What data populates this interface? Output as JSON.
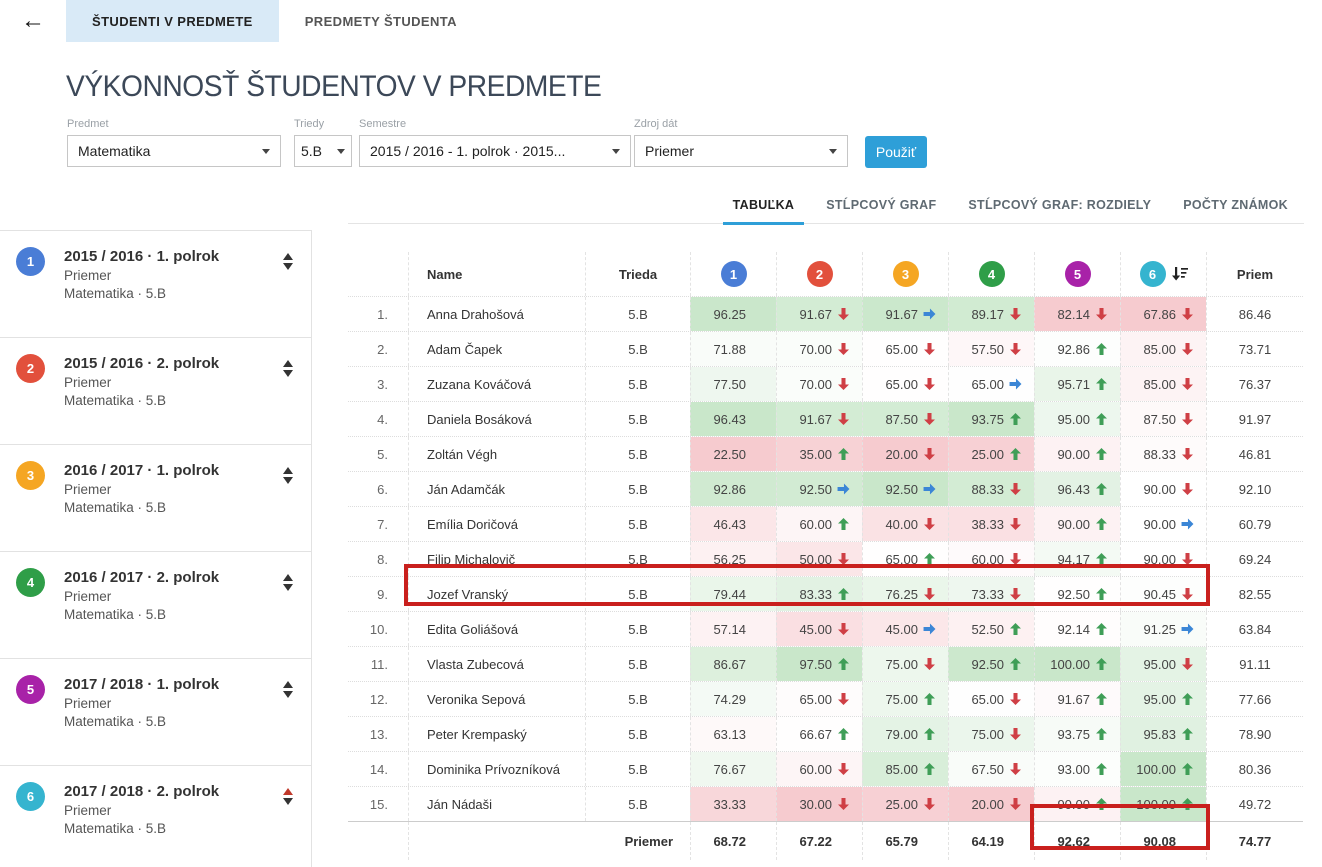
{
  "topbar": {
    "back_icon": "←",
    "tabs": [
      {
        "label": "ŠTUDENTI V PREDMETE",
        "active": true
      },
      {
        "label": "PREDMETY ŠTUDENTA",
        "active": false
      }
    ]
  },
  "page_title": "VÝKONNOSŤ ŠTUDENTOV V PREDMETE",
  "filters": {
    "predmet": {
      "label": "Predmet",
      "value": "Matematika"
    },
    "triedy": {
      "label": "Triedy",
      "value": "5.B"
    },
    "semestre": {
      "label": "Semestre",
      "value": "2015 / 2016 - 1. polrok · 2015..."
    },
    "zdroj": {
      "label": "Zdroj dát",
      "value": "Priemer"
    },
    "apply_label": "Použiť"
  },
  "view_tabs": [
    {
      "label": "TABUĽKA",
      "active": true
    },
    {
      "label": "STĹPCOVÝ GRAF",
      "active": false
    },
    {
      "label": "STĹPCOVÝ GRAF: ROZDIELY",
      "active": false
    },
    {
      "label": "POČTY ZNÁMOK",
      "active": false
    }
  ],
  "accent_color": "#2e9fd8",
  "annotation_color": "#c9201d",
  "series_colors": [
    "#4a7dd6",
    "#e2503c",
    "#f5a623",
    "#2f9e48",
    "#a822a8",
    "#35b4cf"
  ],
  "arrow_colors": {
    "up": "#3f9e57",
    "down": "#cf3f45",
    "same": "#3b86d6"
  },
  "cell_shade_colors": {
    "positive": "#4caf50",
    "negative": "#dc3545"
  },
  "sidebar": {
    "items": [
      {
        "num": "1",
        "title": "2015 / 2016 · 1. polrok",
        "line1": "Priemer",
        "line2": "Matematika · 5.B",
        "sort_up_red": false
      },
      {
        "num": "2",
        "title": "2015 / 2016 · 2. polrok",
        "line1": "Priemer",
        "line2": "Matematika · 5.B",
        "sort_up_red": false
      },
      {
        "num": "3",
        "title": "2016 / 2017 · 1. polrok",
        "line1": "Priemer",
        "line2": "Matematika · 5.B",
        "sort_up_red": false
      },
      {
        "num": "4",
        "title": "2016 / 2017 · 2. polrok",
        "line1": "Priemer",
        "line2": "Matematika · 5.B",
        "sort_up_red": false
      },
      {
        "num": "5",
        "title": "2017 / 2018 · 1. polrok",
        "line1": "Priemer",
        "line2": "Matematika · 5.B",
        "sort_up_red": false
      },
      {
        "num": "6",
        "title": "2017 / 2018 · 2. polrok",
        "line1": "Priemer",
        "line2": "Matematika · 5.B",
        "sort_up_red": true
      }
    ]
  },
  "table": {
    "headers": {
      "name": "Name",
      "trieda": "Trieda",
      "priem": "Priem"
    },
    "column_nums": [
      "1",
      "2",
      "3",
      "4",
      "5",
      "6"
    ],
    "sorted_column_index": 5,
    "rows": [
      {
        "num": "1.",
        "name": "Anna Drahošová",
        "trieda": "5.B",
        "values": [
          "96.25",
          "91.67",
          "91.67",
          "89.17",
          "82.14",
          "67.86"
        ],
        "arrows": [
          null,
          "down",
          "same",
          "down",
          "down",
          "down"
        ],
        "priem": "86.46"
      },
      {
        "num": "2.",
        "name": "Adam Čapek",
        "trieda": "5.B",
        "values": [
          "71.88",
          "70.00",
          "65.00",
          "57.50",
          "92.86",
          "85.00"
        ],
        "arrows": [
          null,
          "down",
          "down",
          "down",
          "up",
          "down"
        ],
        "priem": "73.71"
      },
      {
        "num": "3.",
        "name": "Zuzana Kováčová",
        "trieda": "5.B",
        "values": [
          "77.50",
          "70.00",
          "65.00",
          "65.00",
          "95.71",
          "85.00"
        ],
        "arrows": [
          null,
          "down",
          "down",
          "same",
          "up",
          "down"
        ],
        "priem": "76.37"
      },
      {
        "num": "4.",
        "name": "Daniela Bosáková",
        "trieda": "5.B",
        "values": [
          "96.43",
          "91.67",
          "87.50",
          "93.75",
          "95.00",
          "87.50"
        ],
        "arrows": [
          null,
          "down",
          "down",
          "up",
          "up",
          "down"
        ],
        "priem": "91.97"
      },
      {
        "num": "5.",
        "name": "Zoltán Végh",
        "trieda": "5.B",
        "values": [
          "22.50",
          "35.00",
          "20.00",
          "25.00",
          "90.00",
          "88.33"
        ],
        "arrows": [
          null,
          "up",
          "down",
          "up",
          "up",
          "down"
        ],
        "priem": "46.81"
      },
      {
        "num": "6.",
        "name": "Ján Adamčák",
        "trieda": "5.B",
        "values": [
          "92.86",
          "92.50",
          "92.50",
          "88.33",
          "96.43",
          "90.00"
        ],
        "arrows": [
          null,
          "same",
          "same",
          "down",
          "up",
          "down"
        ],
        "priem": "92.10"
      },
      {
        "num": "7.",
        "name": "Emília Doričová",
        "trieda": "5.B",
        "values": [
          "46.43",
          "60.00",
          "40.00",
          "38.33",
          "90.00",
          "90.00"
        ],
        "arrows": [
          null,
          "up",
          "down",
          "down",
          "up",
          "same"
        ],
        "priem": "60.79"
      },
      {
        "num": "8.",
        "name": "Filip Michalovič",
        "trieda": "5.B",
        "values": [
          "56.25",
          "50.00",
          "65.00",
          "60.00",
          "94.17",
          "90.00"
        ],
        "arrows": [
          null,
          "down",
          "up",
          "down",
          "up",
          "down"
        ],
        "priem": "69.24"
      },
      {
        "num": "9.",
        "name": "Jozef Vranský",
        "trieda": "5.B",
        "values": [
          "79.44",
          "83.33",
          "76.25",
          "73.33",
          "92.50",
          "90.45"
        ],
        "arrows": [
          null,
          "up",
          "down",
          "down",
          "up",
          "down"
        ],
        "priem": "82.55",
        "highlighted": true
      },
      {
        "num": "10.",
        "name": "Edita Goliášová",
        "trieda": "5.B",
        "values": [
          "57.14",
          "45.00",
          "45.00",
          "52.50",
          "92.14",
          "91.25"
        ],
        "arrows": [
          null,
          "down",
          "same",
          "up",
          "up",
          "same"
        ],
        "priem": "63.84"
      },
      {
        "num": "11.",
        "name": "Vlasta Zubecová",
        "trieda": "5.B",
        "values": [
          "86.67",
          "97.50",
          "75.00",
          "92.50",
          "100.00",
          "95.00"
        ],
        "arrows": [
          null,
          "up",
          "down",
          "up",
          "up",
          "down"
        ],
        "priem": "91.11"
      },
      {
        "num": "12.",
        "name": "Veronika Sepová",
        "trieda": "5.B",
        "values": [
          "74.29",
          "65.00",
          "75.00",
          "65.00",
          "91.67",
          "95.00"
        ],
        "arrows": [
          null,
          "down",
          "up",
          "down",
          "up",
          "up"
        ],
        "priem": "77.66"
      },
      {
        "num": "13.",
        "name": "Peter Krempaský",
        "trieda": "5.B",
        "values": [
          "63.13",
          "66.67",
          "79.00",
          "75.00",
          "93.75",
          "95.83"
        ],
        "arrows": [
          null,
          "up",
          "up",
          "down",
          "up",
          "up"
        ],
        "priem": "78.90"
      },
      {
        "num": "14.",
        "name": "Dominika Prívozníková",
        "trieda": "5.B",
        "values": [
          "76.67",
          "60.00",
          "85.00",
          "67.50",
          "93.00",
          "100.00"
        ],
        "arrows": [
          null,
          "down",
          "up",
          "down",
          "up",
          "up"
        ],
        "priem": "80.36"
      },
      {
        "num": "15.",
        "name": "Ján Nádaši",
        "trieda": "5.B",
        "values": [
          "33.33",
          "30.00",
          "25.00",
          "20.00",
          "90.00",
          "100.00"
        ],
        "arrows": [
          null,
          "down",
          "down",
          "down",
          "up",
          "up"
        ],
        "priem": "49.72"
      }
    ],
    "footer": {
      "label": "Priemer",
      "values": [
        "68.72",
        "67.22",
        "65.79",
        "64.19",
        "92.62",
        "90.08"
      ],
      "priem": "74.77"
    }
  },
  "annotations": {
    "highlighted_row_name": "Jozef Vranský",
    "highlighted_footer_values": [
      "92.62",
      "90.08"
    ]
  }
}
